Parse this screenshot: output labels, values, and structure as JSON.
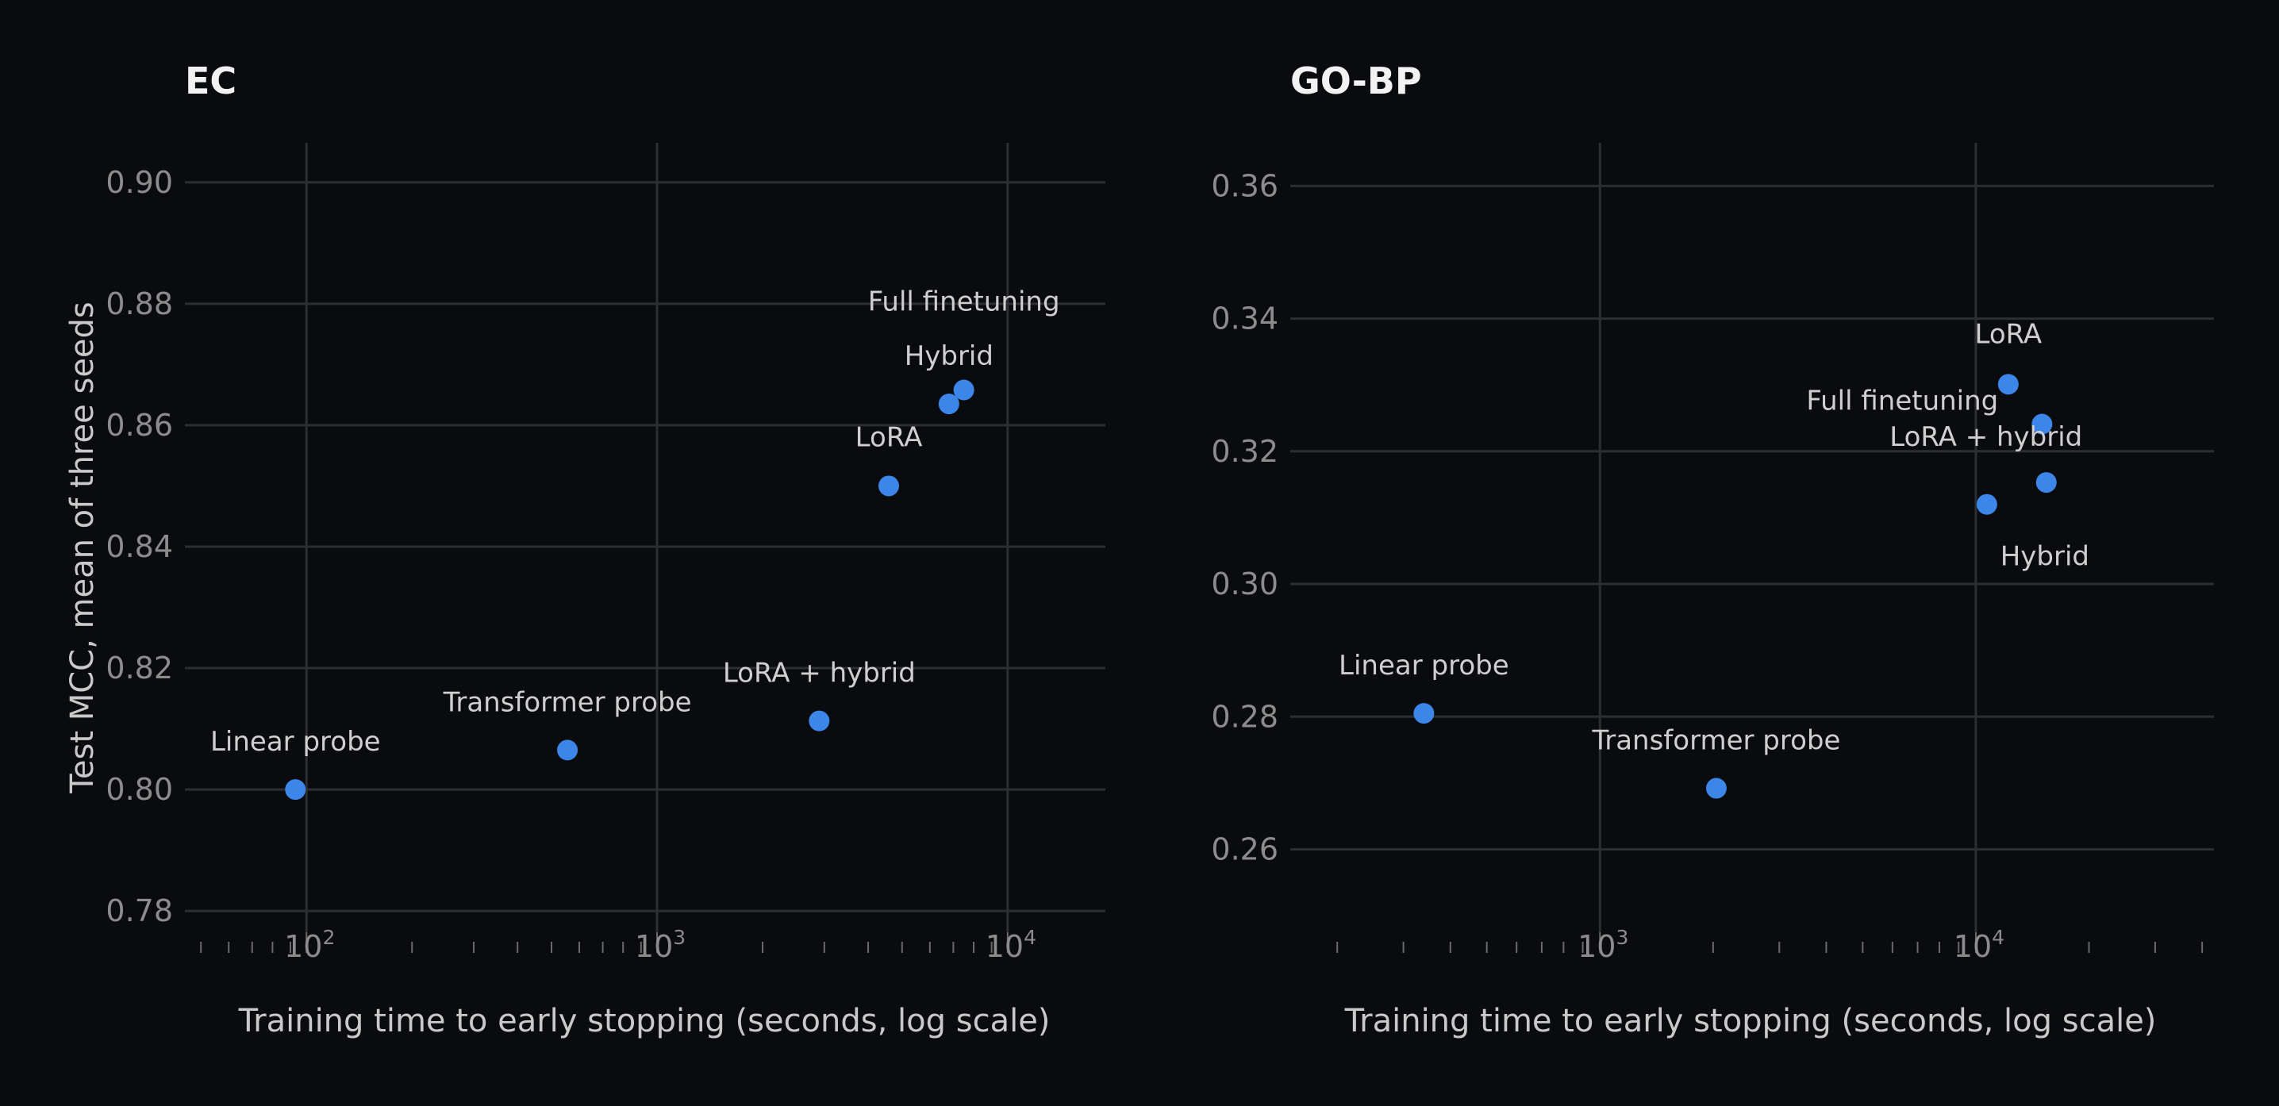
{
  "chart_data": [
    {
      "type": "scatter",
      "title": "EC",
      "xlabel": "Training time to early stopping (seconds, log scale)",
      "ylabel": "Test MCC, mean of three seeds",
      "xscale": "log",
      "xlim": [
        45,
        19000
      ],
      "ylim": [
        0.7765,
        0.9065
      ],
      "x_ticks": [
        {
          "base": "10",
          "exp": "2",
          "value": 100
        },
        {
          "base": "10",
          "exp": "3",
          "value": 1000
        },
        {
          "base": "10",
          "exp": "4",
          "value": 10000
        }
      ],
      "y_ticks": [
        "0.78",
        "0.80",
        "0.82",
        "0.84",
        "0.86",
        "0.88",
        "0.90"
      ],
      "grid": true,
      "color": "#3b86e8",
      "points": [
        {
          "label": "Linear probe",
          "x": 93,
          "y": 0.8
        },
        {
          "label": "Transformer probe",
          "x": 555,
          "y": 0.8065
        },
        {
          "label": "LoRA + hybrid",
          "x": 2900,
          "y": 0.8113
        },
        {
          "label": "LoRA",
          "x": 4580,
          "y": 0.85
        },
        {
          "label": "Hybrid",
          "x": 6800,
          "y": 0.8635
        },
        {
          "label": "Full finetuning",
          "x": 7500,
          "y": 0.8658
        }
      ]
    },
    {
      "type": "scatter",
      "title": "GO-BP",
      "xlabel": "Training time to early stopping (seconds, log scale)",
      "ylabel": "",
      "xscale": "log",
      "xlim": [
        150,
        43000
      ],
      "ylim": [
        0.2475,
        0.3665
      ],
      "x_ticks": [
        {
          "base": "10",
          "exp": "3",
          "value": 1000
        },
        {
          "base": "10",
          "exp": "4",
          "value": 10000
        }
      ],
      "y_ticks": [
        "0.26",
        "0.28",
        "0.30",
        "0.32",
        "0.34",
        "0.36"
      ],
      "grid": true,
      "color": "#3b86e8",
      "points": [
        {
          "label": "Linear probe",
          "x": 340,
          "y": 0.2805
        },
        {
          "label": "Transformer probe",
          "x": 2040,
          "y": 0.2692
        },
        {
          "label": "LoRA",
          "x": 12200,
          "y": 0.3301
        },
        {
          "label": "Full finetuning",
          "x": 15000,
          "y": 0.3241
        },
        {
          "label": "LoRA + hybrid",
          "x": 15400,
          "y": 0.3153
        },
        {
          "label": "Hybrid",
          "x": 10700,
          "y": 0.312
        }
      ]
    }
  ]
}
